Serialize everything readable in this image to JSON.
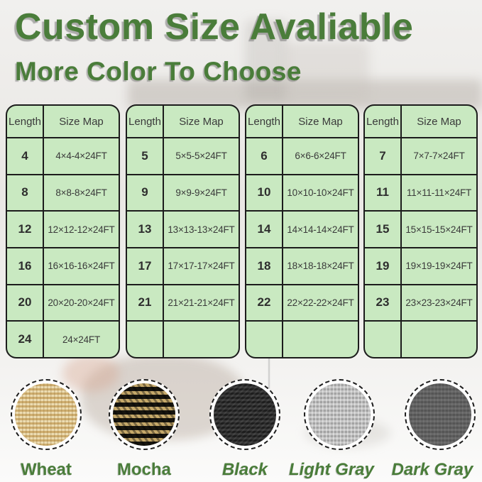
{
  "page": {
    "title": "Custom Size Avaliable",
    "subtitle": "More Color To Choose"
  },
  "colors": {
    "accent_green": "#4a7d3a",
    "table_bg": "#c9e9c1",
    "table_border": "#1c1c1c"
  },
  "size_tables": [
    {
      "headers": [
        "Length",
        "Size Map"
      ],
      "rows": [
        [
          "4",
          "4×4-4×24FT"
        ],
        [
          "8",
          "8×8-8×24FT"
        ],
        [
          "12",
          "12×12-12×24FT"
        ],
        [
          "16",
          "16×16-16×24FT"
        ],
        [
          "20",
          "20×20-20×24FT"
        ],
        [
          "24",
          "24×24FT"
        ]
      ]
    },
    {
      "headers": [
        "Length",
        "Size Map"
      ],
      "rows": [
        [
          "5",
          "5×5-5×24FT"
        ],
        [
          "9",
          "9×9-9×24FT"
        ],
        [
          "13",
          "13×13-13×24FT"
        ],
        [
          "17",
          "17×17-17×24FT"
        ],
        [
          "21",
          "21×21-21×24FT"
        ],
        [
          "",
          ""
        ]
      ]
    },
    {
      "headers": [
        "Length",
        "Size Map"
      ],
      "rows": [
        [
          "6",
          "6×6-6×24FT"
        ],
        [
          "10",
          "10×10-10×24FT"
        ],
        [
          "14",
          "14×14-14×24FT"
        ],
        [
          "18",
          "18×18-18×24FT"
        ],
        [
          "22",
          "22×22-22×24FT"
        ],
        [
          "",
          ""
        ]
      ]
    },
    {
      "headers": [
        "Length",
        "Size Map"
      ],
      "rows": [
        [
          "7",
          "7×7-7×24FT"
        ],
        [
          "11",
          "11×11-11×24FT"
        ],
        [
          "15",
          "15×15-15×24FT"
        ],
        [
          "19",
          "19×19-19×24FT"
        ],
        [
          "23",
          "23×23-23×24FT"
        ],
        [
          "",
          ""
        ]
      ]
    }
  ],
  "color_swatches": [
    {
      "label": "Wheat",
      "base_color": "#dcc189",
      "label_style": "upright"
    },
    {
      "label": "Mocha",
      "base_color": "#8a7648",
      "label_style": "upright"
    },
    {
      "label": "Black",
      "base_color": "#262626",
      "label_style": "italic"
    },
    {
      "label": "Light Gray",
      "base_color": "#b0b0b0",
      "label_style": "italic"
    },
    {
      "label": "Dark Gray",
      "base_color": "#5d5d5d",
      "label_style": "italic"
    }
  ]
}
